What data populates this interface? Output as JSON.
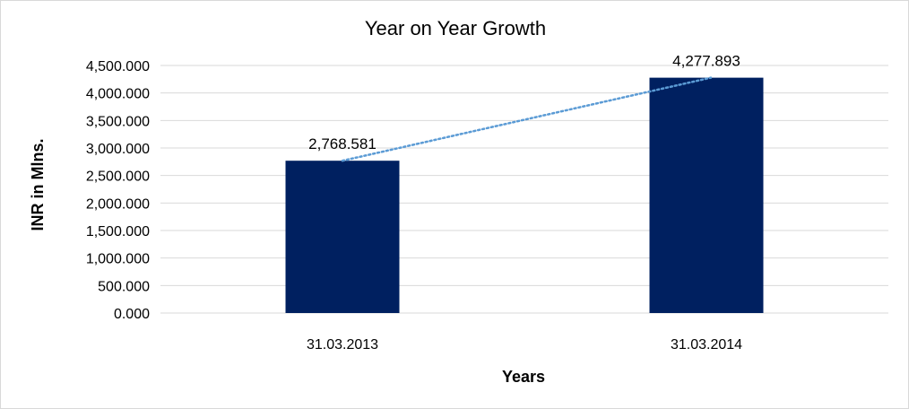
{
  "chart_data": {
    "type": "bar",
    "title": "Year on Year Growth",
    "xlabel": "Years",
    "ylabel": "INR in Mlns.",
    "categories": [
      "31.03.2013",
      "31.03.2014"
    ],
    "values": [
      2768.581,
      4277.893
    ],
    "value_labels": [
      "2,768.581",
      "4,277.893"
    ],
    "ylim": [
      0,
      4500
    ],
    "yticks": [
      0,
      500,
      1000,
      1500,
      2000,
      2500,
      3000,
      3500,
      4000,
      4500
    ],
    "ytick_labels": [
      "0.000",
      "500.000",
      "1,000.000",
      "1,500.000",
      "2,000.000",
      "2,500.000",
      "3,000.000",
      "3,500.000",
      "4,000.000",
      "4,500.000"
    ],
    "grid": true,
    "legend": "none",
    "trendline": "linear, dotted",
    "colors": {
      "bar": "#002060",
      "trendline": "#5b9bd5",
      "grid": "#d9d9d9"
    }
  }
}
